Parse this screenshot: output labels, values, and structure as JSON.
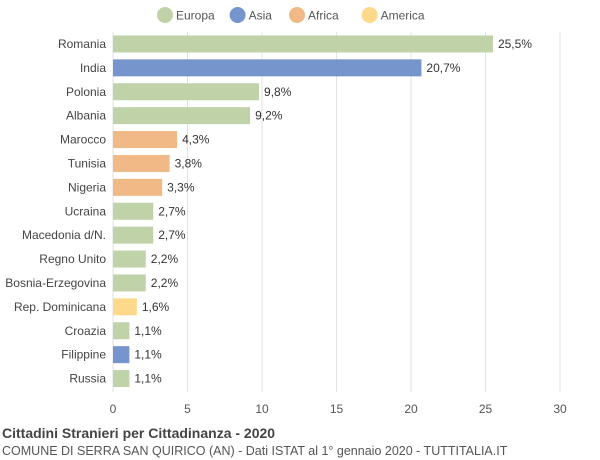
{
  "chart_data": {
    "type": "bar",
    "orientation": "horizontal",
    "title": "Cittadini Stranieri per Cittadinanza - 2020",
    "subtitle": "COMUNE DI SERRA SAN QUIRICO (AN) - Dati ISTAT al 1° gennaio 2020 - TUTTITALIA.IT",
    "legend_position": "top-center",
    "legend": [
      {
        "name": "Europa",
        "color": "#bfd2a8"
      },
      {
        "name": "Asia",
        "color": "#7795cd"
      },
      {
        "name": "Africa",
        "color": "#f0b986"
      },
      {
        "name": "America",
        "color": "#fdd98b"
      }
    ],
    "categories": [
      "Romania",
      "India",
      "Polonia",
      "Albania",
      "Marocco",
      "Tunisia",
      "Nigeria",
      "Ucraina",
      "Macedonia d/N.",
      "Regno Unito",
      "Bosnia-Erzegovina",
      "Rep. Dominicana",
      "Croazia",
      "Filippine",
      "Russia"
    ],
    "values": [
      25.5,
      20.7,
      9.8,
      9.2,
      4.3,
      3.8,
      3.3,
      2.7,
      2.7,
      2.2,
      2.2,
      1.6,
      1.1,
      1.1,
      1.1
    ],
    "value_labels": [
      "25,5%",
      "20,7%",
      "9,8%",
      "9,2%",
      "4,3%",
      "3,8%",
      "3,3%",
      "2,7%",
      "2,7%",
      "2,2%",
      "2,2%",
      "1,6%",
      "1,1%",
      "1,1%",
      "1,1%"
    ],
    "groups": [
      "Europa",
      "Asia",
      "Europa",
      "Europa",
      "Africa",
      "Africa",
      "Africa",
      "Europa",
      "Europa",
      "Europa",
      "Europa",
      "America",
      "Europa",
      "Asia",
      "Europa"
    ],
    "xlim": [
      0,
      30
    ],
    "xticks": [
      0,
      5,
      10,
      15,
      20,
      25,
      30
    ],
    "grid": true
  }
}
